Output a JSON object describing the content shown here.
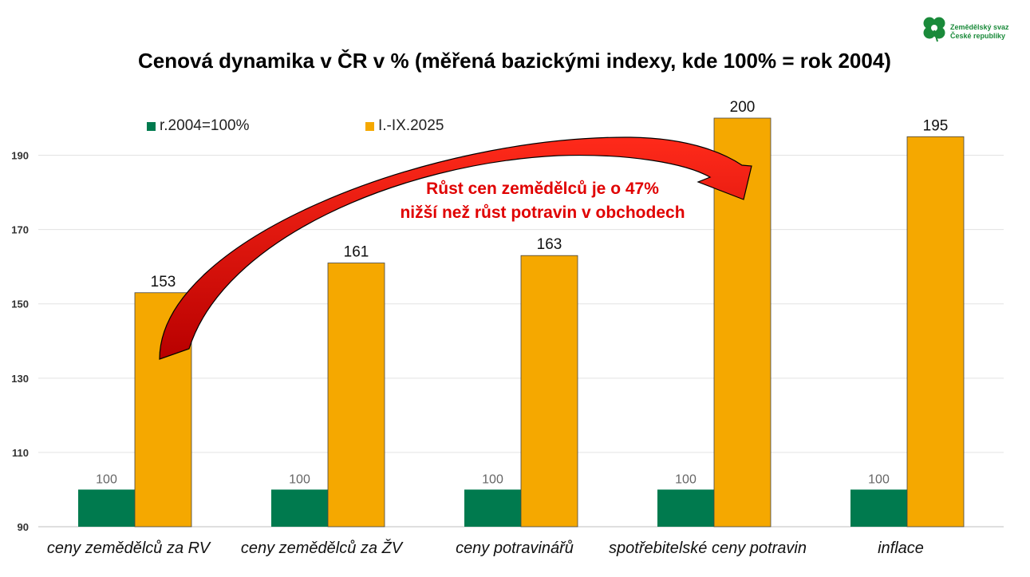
{
  "logo": {
    "line1": "Zemědělský svaz",
    "line2": "České republiky"
  },
  "annotation": {
    "line1": "Růst cen zemědělců je o 47%",
    "line2": "nižší než růst potravin v obchodech",
    "color": "#e00000"
  },
  "chart_data": {
    "type": "bar",
    "title": "Cenová dynamika v ČR v % (měřená bazickými indexy, kde 100% = rok 2004)",
    "categories": [
      "ceny zemědělců za RV",
      "ceny zemědělců za ŽV",
      "ceny potravinářů",
      "spotřebitelské ceny potravin",
      "inflace"
    ],
    "series": [
      {
        "name": "r.2004=100%",
        "values": [
          100,
          100,
          100,
          100,
          100
        ],
        "color": "#007a4e"
      },
      {
        "name": "I.-IX.2025",
        "values": [
          153,
          161,
          163,
          200,
          195
        ],
        "color": "#f5a800"
      }
    ],
    "ylim": [
      90,
      200
    ],
    "yticks": [
      90,
      110,
      130,
      150,
      170,
      190
    ],
    "grid": true,
    "legend": "top",
    "xlabel": "",
    "ylabel": ""
  }
}
